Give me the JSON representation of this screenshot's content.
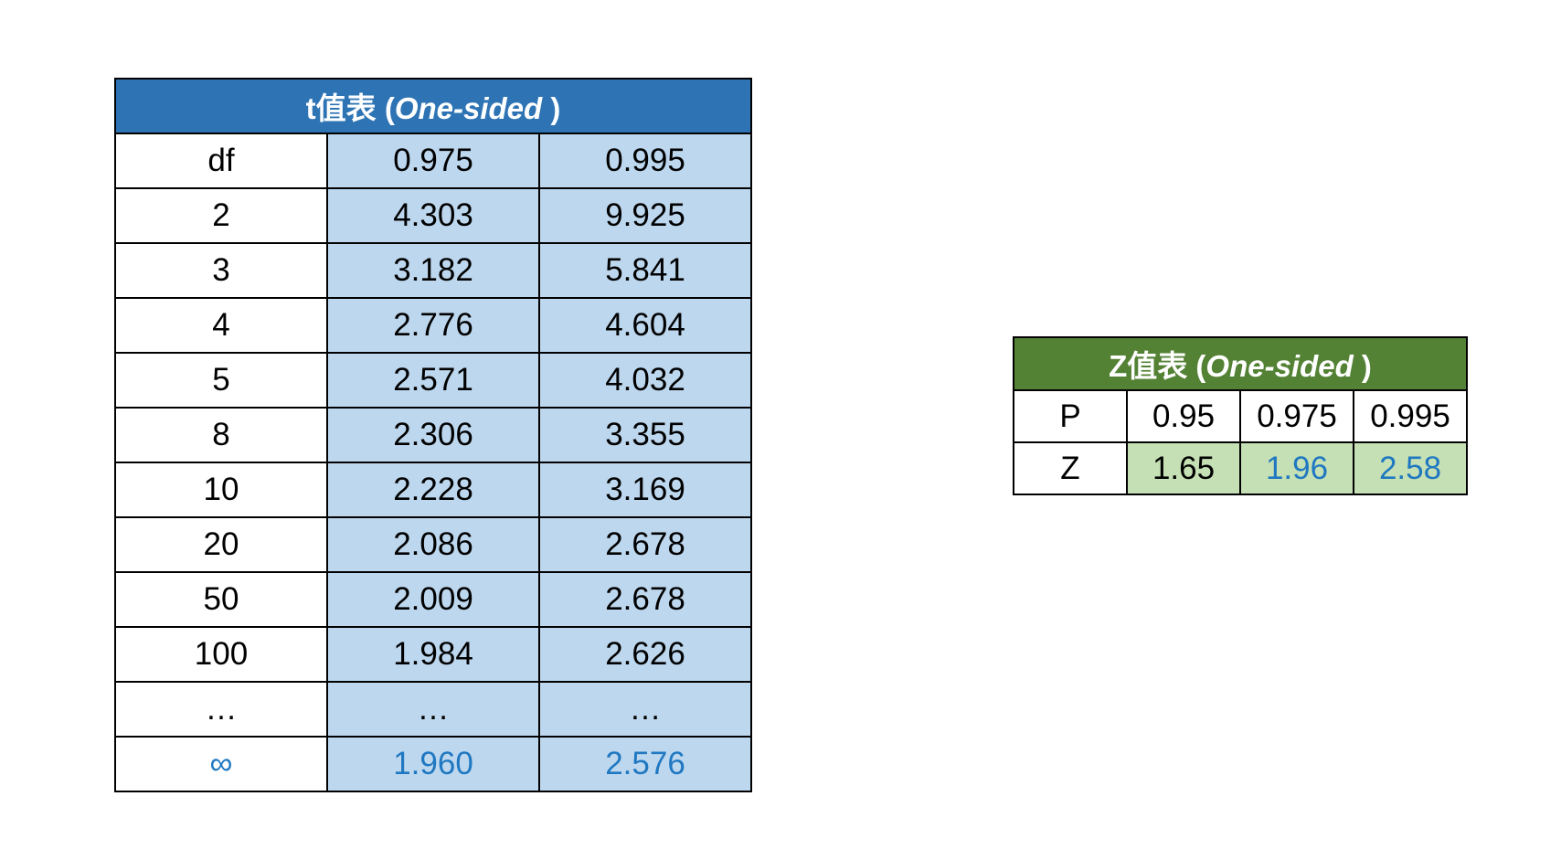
{
  "t_table": {
    "title_main": "t值表",
    "title_paren_open": " (",
    "title_sub": "One-sided",
    "title_paren_close": " )",
    "header": [
      "df",
      "0.975",
      "0.995"
    ],
    "rows": [
      [
        "2",
        "4.303",
        "9.925"
      ],
      [
        "3",
        "3.182",
        "5.841"
      ],
      [
        "4",
        "2.776",
        "4.604"
      ],
      [
        "5",
        "2.571",
        "4.032"
      ],
      [
        "8",
        "2.306",
        "3.355"
      ],
      [
        "10",
        "2.228",
        "3.169"
      ],
      [
        "20",
        "2.086",
        "2.678"
      ],
      [
        "50",
        "2.009",
        "2.678"
      ],
      [
        "100",
        "1.984",
        "2.626"
      ],
      [
        "…",
        "…",
        "…"
      ],
      [
        "∞",
        "1.960",
        "2.576"
      ]
    ]
  },
  "z_table": {
    "title_main": "Z值表",
    "title_paren_open": " (",
    "title_sub": "One-sided",
    "title_paren_close": " )",
    "rows": [
      [
        "P",
        "0.95",
        "0.975",
        "0.995"
      ],
      [
        "Z",
        "1.65",
        "1.96",
        "2.58"
      ]
    ]
  },
  "colors": {
    "t_header_bg": "#2e74b5",
    "t_value_bg": "#bdd7ee",
    "z_header_bg": "#548235",
    "z_value_bg": "#c5e0b4",
    "highlight_text": "#1f78c1"
  }
}
